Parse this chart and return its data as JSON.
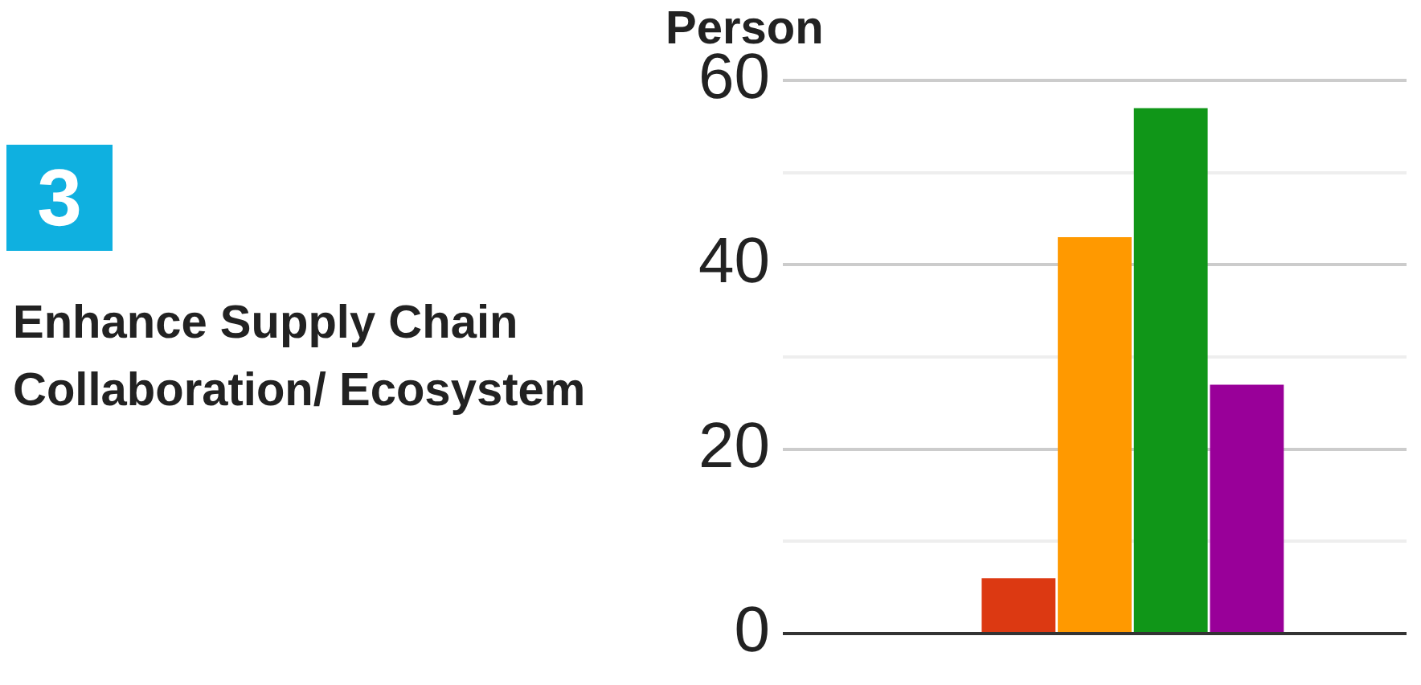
{
  "chart_data": {
    "type": "bar",
    "title": "Enhance Supply Chain Collaboration/ Ecosystem",
    "ylabel": "Person",
    "annotations": [
      "3"
    ],
    "categories": [
      null
    ],
    "series": [
      {
        "color": "#3366cc",
        "values": [
          0
        ]
      },
      {
        "color": "#dc3912",
        "values": [
          6
        ]
      },
      {
        "color": "#ff9900",
        "values": [
          43
        ]
      },
      {
        "color": "#109618",
        "values": [
          57
        ]
      },
      {
        "color": "#990099",
        "values": [
          27
        ]
      }
    ],
    "ylim": [
      0,
      60
    ],
    "yticks": [
      0,
      {
        "value": 10,
        "label": null
      },
      20,
      {
        "value": 30,
        "label": null
      },
      40,
      {
        "value": 50,
        "label": null
      },
      60
    ],
    "grid": "y",
    "legend": false,
    "tick_labels": "y"
  }
}
